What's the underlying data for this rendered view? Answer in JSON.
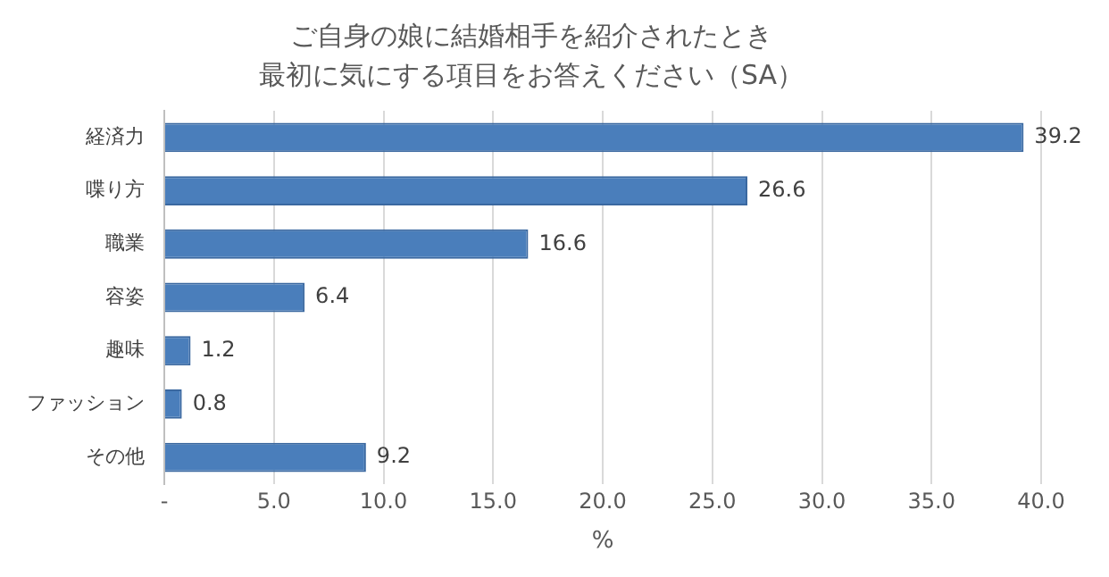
{
  "chart_data": {
    "type": "bar",
    "orientation": "horizontal",
    "title": "ご自身の娘に結婚相手を紹介されたとき",
    "subtitle": "最初に気にする項目をお答えください（SA）",
    "categories": [
      "経済力",
      "喋り方",
      "職業",
      "容姿",
      "趣味",
      "ファッション",
      "その他"
    ],
    "values": [
      39.2,
      26.6,
      16.6,
      6.4,
      1.2,
      0.8,
      9.2
    ],
    "color": "#4a7ebb",
    "data_labels": true,
    "xlabel": "%",
    "xlim": [
      0,
      40
    ],
    "xticks": [
      {
        "value": 0,
        "label": "-"
      },
      {
        "value": 5,
        "label": "5.0"
      },
      {
        "value": 10,
        "label": "10.0"
      },
      {
        "value": 15,
        "label": "15.0"
      },
      {
        "value": 20,
        "label": "20.0"
      },
      {
        "value": 25,
        "label": "25.0"
      },
      {
        "value": 30,
        "label": "30.0"
      },
      {
        "value": 35,
        "label": "35.0"
      },
      {
        "value": 40,
        "label": "40.0"
      }
    ],
    "grid": "x"
  }
}
